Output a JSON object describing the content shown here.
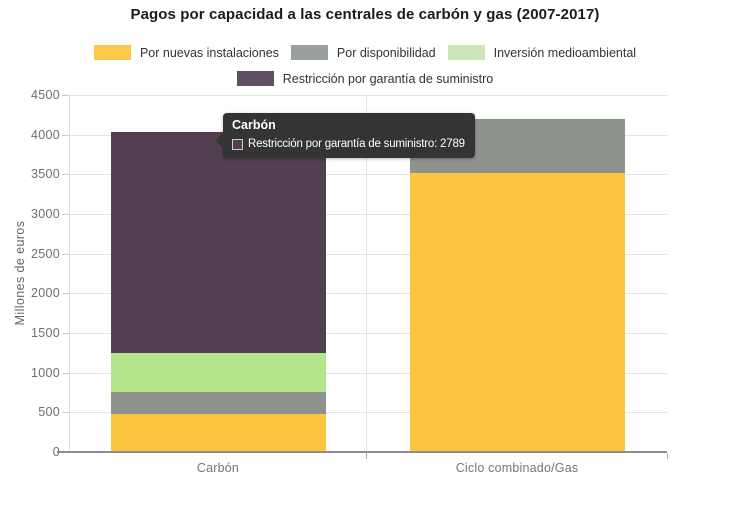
{
  "title": "Pagos por capacidad a las centrales de carbón y gas (2007-2017)",
  "chart_data": {
    "type": "bar",
    "stacked": true,
    "title": "Pagos por capacidad a las centrales de carbón y gas (2007-2017)",
    "xlabel": "",
    "ylabel": "Millones de euros",
    "ylim": [
      0,
      4500
    ],
    "ytick_step": 500,
    "yticks": [
      0,
      500,
      1000,
      1500,
      2000,
      2500,
      3000,
      3500,
      4000,
      4500
    ],
    "grid": true,
    "legend_position": "top",
    "categories": [
      "Carbón",
      "Ciclo combinado/Gas"
    ],
    "series": [
      {
        "name": "Por nuevas instalaciones",
        "color": "#fdc53f",
        "legend_color": "#fdc84c",
        "values": [
          485,
          3520
        ]
      },
      {
        "name": "Por disponibilidad",
        "color": "#8f938e",
        "legend_color": "#9aa09c",
        "values": [
          270,
          680
        ]
      },
      {
        "name": "Inversión medioambiental",
        "color": "#b4e58a",
        "legend_color": "#cee5b9",
        "values": [
          490,
          0
        ]
      },
      {
        "name": "Restricción por garantía de suministro",
        "color": "#533f52",
        "legend_color": "#5e5062",
        "values": [
          2789,
          0
        ]
      }
    ],
    "legend_rows": [
      [
        0,
        1,
        2
      ],
      [
        3
      ]
    ],
    "totals": [
      4034,
      4200
    ]
  },
  "tooltip": {
    "title": "Carbón",
    "text": "Restricción por garantía de suministro: 2789",
    "value": 2789,
    "series": "Restricción por garantía de suministro",
    "swatch_color": "#533f52"
  },
  "colors": {
    "title_text": "#1b1b1b",
    "legend_text": "#333333",
    "axis_text": "#6f6f6f",
    "gridline": "#e3e3e3",
    "axis_line": "#8e8e8e",
    "tooltip_bg": "#343434",
    "tooltip_text": "#ffffff"
  }
}
